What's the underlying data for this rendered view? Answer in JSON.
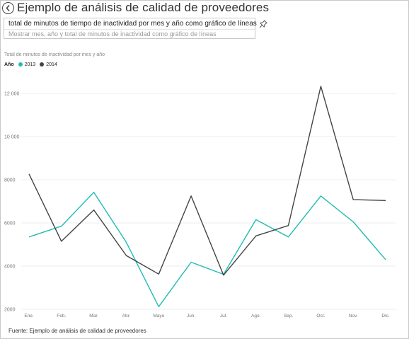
{
  "header": {
    "title": "Ejemplo de análisis de calidad de proveedores"
  },
  "qa": {
    "input_value": "total de minutos de tiempo de inactividad por mes y año como gráfico de líneas",
    "suggestion": "Mostrar mes, año y total de minutos de inactividad como gráfico de líneas"
  },
  "colors": {
    "series_2013": "#1fbcb4",
    "series_2014": "#404548",
    "grid": "#eeeeee",
    "tick_text": "#777777"
  },
  "chart_data": {
    "type": "line",
    "title": "Total de minutos de inactividad por mes y año",
    "legend_title": "Año",
    "legend_position": "top-left",
    "categories": [
      "Ene.",
      "Feb.",
      "Mar.",
      "Abr.",
      "Mayo",
      "Jun.",
      "Jul.",
      "Ago.",
      "Sep.",
      "Oct.",
      "Nov.",
      "Dic."
    ],
    "ylim": [
      2000,
      12500
    ],
    "yticks": [
      2000,
      4000,
      6000,
      8000,
      10000,
      12000
    ],
    "ytick_labels": [
      "2000",
      "4000",
      "6000",
      "8000",
      "10 000",
      "12 000"
    ],
    "grid": true,
    "series": [
      {
        "name": "2013",
        "values": [
          5350,
          5850,
          7420,
          5100,
          2120,
          4180,
          3620,
          6150,
          5350,
          7250,
          6050,
          4300
        ]
      },
      {
        "name": "2014",
        "values": [
          8270,
          5150,
          6600,
          4490,
          3630,
          7250,
          3580,
          5400,
          5880,
          12330,
          7080,
          7040
        ]
      }
    ]
  },
  "footer": {
    "source": "Fuente: Ejemplo de análisis de calidad de proveedores"
  }
}
